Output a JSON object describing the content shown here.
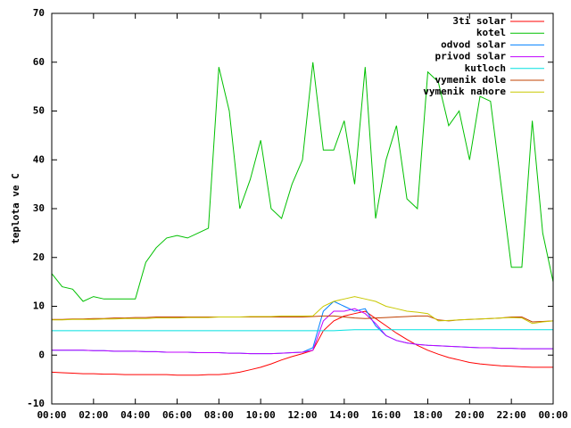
{
  "chart_data": {
    "type": "line",
    "ylabel": "teplota ve C",
    "x": [
      0,
      0.5,
      1,
      1.5,
      2,
      2.5,
      3,
      3.5,
      4,
      4.5,
      5,
      5.5,
      6,
      6.5,
      7,
      7.5,
      8,
      8.5,
      9,
      9.5,
      10,
      10.5,
      11,
      11.5,
      12,
      12.5,
      13,
      13.5,
      14,
      14.5,
      15,
      15.5,
      16,
      16.5,
      17,
      17.5,
      18,
      18.5,
      19,
      19.5,
      20,
      20.5,
      21,
      21.5,
      22,
      22.5,
      23,
      23.5,
      24
    ],
    "xlim": [
      0,
      24
    ],
    "xticks": [
      {
        "value": 0,
        "label": "00:00"
      },
      {
        "value": 2,
        "label": "02:00"
      },
      {
        "value": 4,
        "label": "04:00"
      },
      {
        "value": 6,
        "label": "06:00"
      },
      {
        "value": 8,
        "label": "08:00"
      },
      {
        "value": 10,
        "label": "10:00"
      },
      {
        "value": 12,
        "label": "12:00"
      },
      {
        "value": 14,
        "label": "14:00"
      },
      {
        "value": 16,
        "label": "16:00"
      },
      {
        "value": 18,
        "label": "18:00"
      },
      {
        "value": 20,
        "label": "20:00"
      },
      {
        "value": 22,
        "label": "22:00"
      },
      {
        "value": 24,
        "label": "00:00"
      }
    ],
    "ylim": [
      -10,
      70
    ],
    "yticks": [
      -10,
      0,
      10,
      20,
      30,
      40,
      50,
      60,
      70
    ],
    "legend": "top-right",
    "series": [
      {
        "name": "3ti solar",
        "color": "#ff0000",
        "values": [
          -3.5,
          -3.6,
          -3.7,
          -3.8,
          -3.8,
          -3.9,
          -3.9,
          -4,
          -4,
          -4,
          -4,
          -4,
          -4.1,
          -4.1,
          -4.1,
          -4,
          -4,
          -3.8,
          -3.5,
          -3,
          -2.5,
          -1.8,
          -1,
          -0.3,
          0.3,
          1,
          5,
          7,
          8,
          8.5,
          9,
          7.5,
          6,
          4.5,
          3.2,
          2,
          1,
          0.2,
          -0.5,
          -1,
          -1.5,
          -1.8,
          -2,
          -2.2,
          -2.3,
          -2.4,
          -2.5,
          -2.5,
          -2.5
        ]
      },
      {
        "name": "kotel",
        "color": "#00c000",
        "values": [
          16.7,
          14,
          13.5,
          11,
          12,
          11.5,
          11.5,
          11.5,
          11.5,
          19,
          22,
          24,
          24.5,
          24,
          25,
          26,
          59,
          50,
          30,
          36,
          44,
          30,
          28,
          35,
          40,
          60,
          42,
          42,
          48,
          35,
          59,
          28,
          40,
          47,
          32,
          30,
          58,
          56,
          47,
          50,
          40,
          53,
          52,
          35,
          18,
          18,
          48,
          25,
          15
        ]
      },
      {
        "name": "odvod solar",
        "color": "#0080ff",
        "values": [
          1,
          1,
          1,
          1,
          0.9,
          0.9,
          0.8,
          0.8,
          0.8,
          0.7,
          0.7,
          0.6,
          0.6,
          0.6,
          0.5,
          0.5,
          0.5,
          0.4,
          0.4,
          0.3,
          0.3,
          0.3,
          0.4,
          0.5,
          0.6,
          1.5,
          9,
          11,
          10,
          9,
          9.5,
          6,
          4,
          3,
          2.5,
          2.2,
          2,
          1.9,
          1.8,
          1.7,
          1.6,
          1.5,
          1.5,
          1.4,
          1.4,
          1.3,
          1.3,
          1.3,
          1.3
        ]
      },
      {
        "name": "privod solar",
        "color": "#c000ff",
        "values": [
          1,
          1,
          1,
          1,
          0.9,
          0.9,
          0.8,
          0.8,
          0.8,
          0.7,
          0.7,
          0.6,
          0.6,
          0.6,
          0.5,
          0.5,
          0.5,
          0.4,
          0.4,
          0.3,
          0.3,
          0.3,
          0.4,
          0.5,
          0.6,
          1,
          7,
          9,
          9,
          9.5,
          8.5,
          6.5,
          4,
          3,
          2.5,
          2.2,
          2,
          1.9,
          1.8,
          1.7,
          1.6,
          1.5,
          1.5,
          1.4,
          1.4,
          1.3,
          1.3,
          1.3,
          1.3
        ]
      },
      {
        "name": "kutloch",
        "color": "#00e0e0",
        "values": [
          5,
          5,
          5,
          5,
          5,
          5,
          5,
          5,
          5,
          5,
          5,
          5,
          5,
          5,
          5,
          5,
          5,
          5,
          5,
          5,
          5,
          5,
          5,
          5,
          5,
          5,
          5,
          5,
          5.1,
          5.2,
          5.2,
          5.2,
          5.2,
          5.2,
          5.2,
          5.2,
          5.2,
          5.2,
          5.2,
          5.2,
          5.2,
          5.2,
          5.2,
          5.2,
          5.2,
          5.2,
          5.2,
          5.2,
          5.2
        ]
      },
      {
        "name": "vymenik dole",
        "color": "#c04000",
        "values": [
          7.3,
          7.3,
          7.4,
          7.4,
          7.5,
          7.5,
          7.6,
          7.6,
          7.7,
          7.7,
          7.8,
          7.8,
          7.8,
          7.8,
          7.8,
          7.8,
          7.8,
          7.8,
          7.8,
          7.8,
          7.8,
          7.8,
          7.8,
          7.8,
          7.8,
          7.9,
          8,
          8,
          7.8,
          7.6,
          7.5,
          7.6,
          7.7,
          7.8,
          7.9,
          8,
          8,
          7.2,
          7,
          7.2,
          7.3,
          7.4,
          7.5,
          7.6,
          7.8,
          7.8,
          6.8,
          6.9,
          7
        ]
      },
      {
        "name": "vymenik nahore",
        "color": "#c8c800",
        "values": [
          7.2,
          7.2,
          7.3,
          7.3,
          7.3,
          7.4,
          7.4,
          7.5,
          7.5,
          7.5,
          7.6,
          7.6,
          7.6,
          7.7,
          7.7,
          7.7,
          7.8,
          7.8,
          7.8,
          7.9,
          7.9,
          7.9,
          8,
          8,
          8,
          8,
          10,
          11,
          11.5,
          12,
          11.5,
          11,
          10,
          9.5,
          9,
          8.8,
          8.5,
          7,
          7.1,
          7.2,
          7.3,
          7.4,
          7.5,
          7.6,
          7.7,
          7.6,
          6.5,
          6.8,
          7
        ]
      }
    ]
  }
}
